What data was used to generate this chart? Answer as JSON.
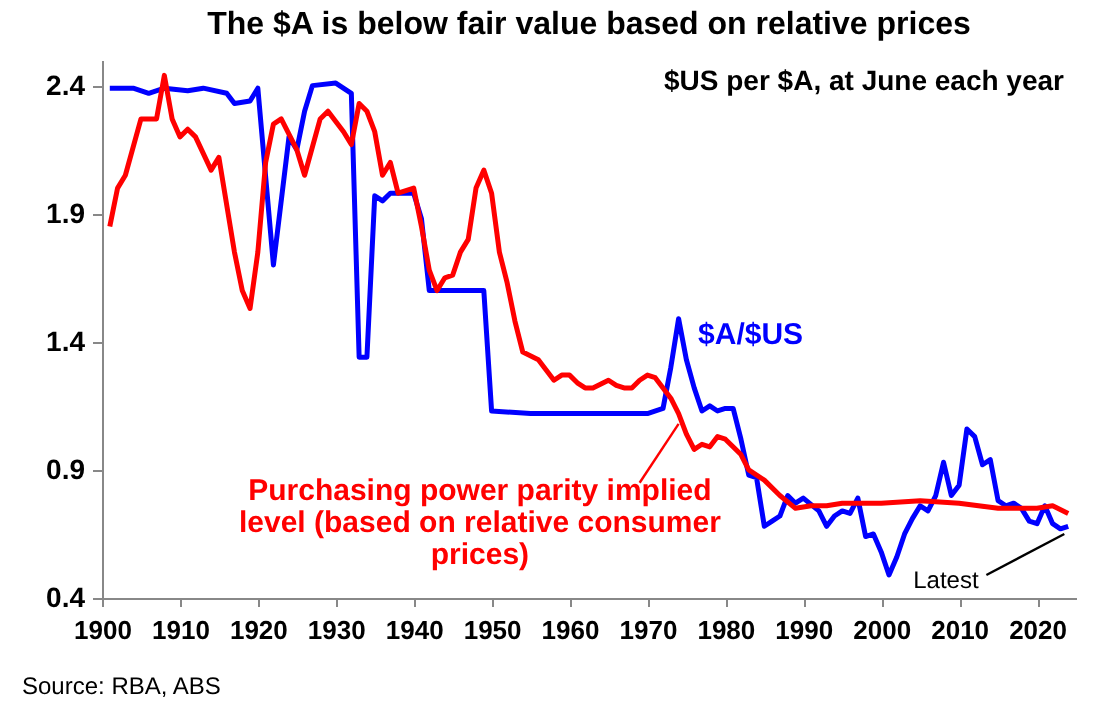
{
  "chart_data": {
    "type": "line",
    "title": "The $A is below fair value based on relative prices",
    "xlim": [
      1900,
      2025
    ],
    "xticks": [
      1900,
      1910,
      1920,
      1930,
      1940,
      1950,
      1960,
      1970,
      1980,
      1990,
      2000,
      2010,
      2020
    ],
    "ylim": [
      0.4,
      2.5
    ],
    "yticks": [
      0.4,
      0.9,
      1.4,
      1.9,
      2.4
    ],
    "grid": false,
    "series": [
      {
        "name": "$A/$US",
        "color": "#0000ff",
        "x": [
          1901,
          1904,
          1906,
          1908,
          1911,
          1913,
          1916,
          1917,
          1919,
          1920,
          1922,
          1924,
          1925,
          1926,
          1927,
          1930,
          1932,
          1933,
          1934,
          1935,
          1936,
          1937,
          1940,
          1941,
          1942,
          1949,
          1950,
          1955,
          1965,
          1970,
          1972,
          1973,
          1974,
          1975,
          1976,
          1977,
          1978,
          1979,
          1980,
          1981,
          1982,
          1983,
          1984,
          1985,
          1986,
          1987,
          1988,
          1989,
          1990,
          1992,
          1993,
          1994,
          1995,
          1996,
          1997,
          1998,
          1999,
          2000,
          2001,
          2002,
          2003,
          2004,
          2005,
          2006,
          2007,
          2008,
          2009,
          2010,
          2011,
          2012,
          2013,
          2014,
          2015,
          2016,
          2017,
          2018,
          2019,
          2020,
          2021,
          2022,
          2023,
          2024
        ],
        "values": [
          2.39,
          2.39,
          2.37,
          2.39,
          2.38,
          2.39,
          2.37,
          2.33,
          2.34,
          2.39,
          1.7,
          2.2,
          2.15,
          2.3,
          2.4,
          2.41,
          2.37,
          1.34,
          1.34,
          1.97,
          1.95,
          1.98,
          1.98,
          1.88,
          1.6,
          1.6,
          1.13,
          1.12,
          1.12,
          1.12,
          1.14,
          1.3,
          1.49,
          1.33,
          1.22,
          1.13,
          1.15,
          1.13,
          1.14,
          1.14,
          1.02,
          0.88,
          0.87,
          0.68,
          0.7,
          0.72,
          0.8,
          0.77,
          0.79,
          0.74,
          0.68,
          0.72,
          0.74,
          0.73,
          0.79,
          0.64,
          0.65,
          0.58,
          0.49,
          0.56,
          0.65,
          0.71,
          0.76,
          0.74,
          0.8,
          0.93,
          0.8,
          0.84,
          1.06,
          1.03,
          0.92,
          0.94,
          0.78,
          0.76,
          0.77,
          0.75,
          0.7,
          0.69,
          0.76,
          0.69,
          0.67,
          0.68
        ]
      },
      {
        "name": "Purchasing power parity implied level (based on relative consumer prices)",
        "color": "#ff0000",
        "x": [
          1901,
          1902,
          1903,
          1905,
          1907,
          1908,
          1909,
          1910,
          1911,
          1912,
          1914,
          1915,
          1917,
          1918,
          1919,
          1920,
          1921,
          1922,
          1923,
          1925,
          1926,
          1928,
          1929,
          1931,
          1932,
          1933,
          1934,
          1935,
          1936,
          1937,
          1938,
          1940,
          1941,
          1942,
          1943,
          1944,
          1945,
          1946,
          1947,
          1948,
          1949,
          1950,
          1951,
          1952,
          1953,
          1954,
          1956,
          1957,
          1958,
          1959,
          1960,
          1961,
          1962,
          1963,
          1965,
          1966,
          1967,
          1968,
          1969,
          1970,
          1971,
          1972,
          1973,
          1974,
          1975,
          1976,
          1977,
          1978,
          1979,
          1980,
          1982,
          1983,
          1985,
          1987,
          1989,
          1991,
          1993,
          1995,
          2000,
          2005,
          2010,
          2015,
          2020,
          2022,
          2024
        ],
        "values": [
          1.85,
          2.0,
          2.05,
          2.27,
          2.27,
          2.44,
          2.27,
          2.2,
          2.23,
          2.2,
          2.07,
          2.12,
          1.75,
          1.6,
          1.53,
          1.75,
          2.1,
          2.25,
          2.27,
          2.15,
          2.05,
          2.27,
          2.3,
          2.22,
          2.17,
          2.33,
          2.3,
          2.22,
          2.05,
          2.1,
          1.98,
          2.0,
          1.85,
          1.68,
          1.6,
          1.65,
          1.66,
          1.75,
          1.8,
          2.0,
          2.07,
          1.98,
          1.75,
          1.63,
          1.48,
          1.36,
          1.33,
          1.29,
          1.25,
          1.27,
          1.27,
          1.24,
          1.22,
          1.22,
          1.25,
          1.23,
          1.22,
          1.22,
          1.25,
          1.27,
          1.26,
          1.22,
          1.18,
          1.12,
          1.04,
          0.98,
          1.0,
          0.99,
          1.03,
          1.02,
          0.96,
          0.9,
          0.86,
          0.8,
          0.75,
          0.76,
          0.76,
          0.77,
          0.77,
          0.78,
          0.77,
          0.75,
          0.75,
          0.76,
          0.73
        ]
      }
    ],
    "annotations": [
      "$US per $A, at June each year",
      {
        "text": "Latest",
        "x": 2024,
        "y": 0.68
      },
      "Source: RBA, ABS"
    ]
  }
}
